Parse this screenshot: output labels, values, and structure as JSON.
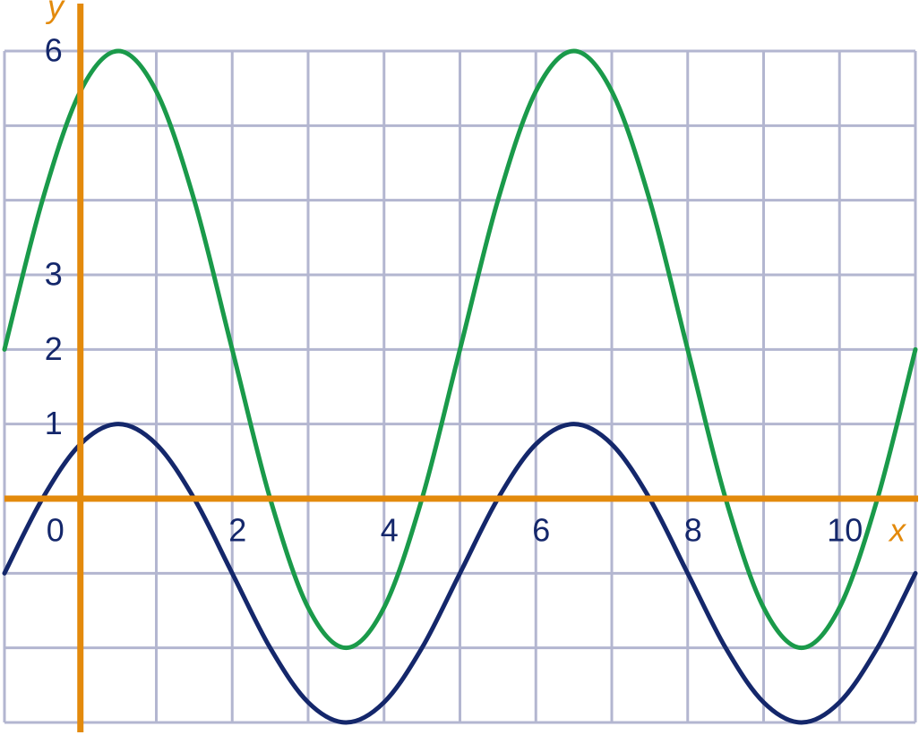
{
  "chart_data": {
    "type": "line",
    "x_label": "x",
    "y_label": "y",
    "x": [
      -1,
      -0.5,
      0,
      0.5,
      1,
      1.5,
      2,
      2.5,
      3,
      3.5,
      4,
      4.5,
      5,
      5.5,
      6,
      6.5,
      7,
      7.5,
      8,
      8.5,
      9,
      9.5,
      10,
      10.5,
      11
    ],
    "series": [
      {
        "color": "#1a9a4a",
        "values": [
          2,
          4,
          5.46,
          6,
          5.46,
          4,
          2,
          0,
          -1.46,
          -2,
          -1.46,
          0,
          2,
          4,
          5.46,
          6,
          5.46,
          4,
          2,
          0,
          -1.46,
          -2,
          -1.46,
          0,
          2
        ]
      },
      {
        "color": "#14276b",
        "values": [
          -1,
          0,
          0.73,
          1,
          0.73,
          0,
          -1,
          -2,
          -2.73,
          -3,
          -2.73,
          -2,
          -1,
          0,
          0.73,
          1,
          0.73,
          0,
          -1,
          -2,
          -2.73,
          -3,
          -2.73,
          -2,
          -1
        ]
      }
    ],
    "xlim": [
      -1,
      11
    ],
    "ylim": [
      -3,
      6
    ],
    "xticks": [
      {
        "value": -1,
        "label": null
      },
      0,
      {
        "value": 1,
        "label": null
      },
      2,
      {
        "value": 3,
        "label": null
      },
      4,
      {
        "value": 5,
        "label": null
      },
      6,
      {
        "value": 7,
        "label": null
      },
      8,
      {
        "value": 9,
        "label": null
      },
      10,
      {
        "value": 11,
        "label": null
      }
    ],
    "yticks": [
      {
        "value": -3,
        "label": null
      },
      {
        "value": -2,
        "label": null
      },
      {
        "value": -1,
        "label": null
      },
      {
        "value": 0,
        "label": null
      },
      1,
      2,
      3,
      {
        "value": 4,
        "label": null
      },
      {
        "value": 5,
        "label": null
      },
      6
    ],
    "grid": true,
    "grid_color": "#b3b6d0",
    "axis_color": "#e38a0c",
    "label_color": "#14276b"
  }
}
